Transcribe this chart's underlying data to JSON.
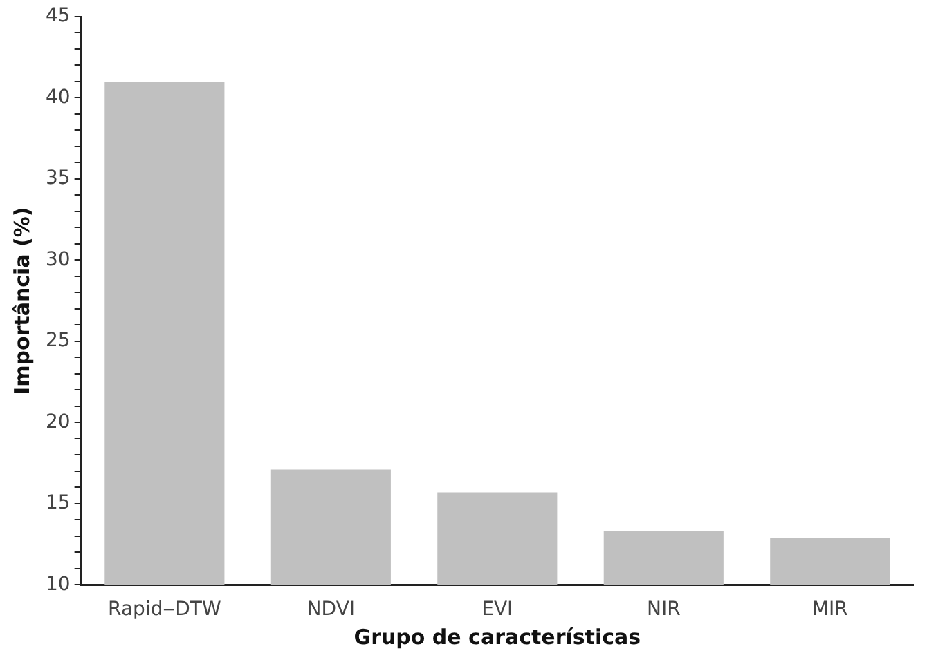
{
  "chart_data": {
    "type": "bar",
    "xlabel": "Grupo de características",
    "ylabel": "Importância (%)",
    "categories": [
      "Rapid‒DTW",
      "NDVI",
      "EVI",
      "NIR",
      "MIR"
    ],
    "values": [
      41,
      17.1,
      15.7,
      13.3,
      12.9
    ],
    "color": "#c0c0c0",
    "ylim": [
      10,
      45
    ],
    "yticks": [
      10,
      {
        "value": 11,
        "label": null
      },
      {
        "value": 12,
        "label": null
      },
      {
        "value": 13,
        "label": null
      },
      {
        "value": 14,
        "label": null
      },
      15,
      {
        "value": 16,
        "label": null
      },
      {
        "value": 17,
        "label": null
      },
      {
        "value": 18,
        "label": null
      },
      {
        "value": 19,
        "label": null
      },
      20,
      {
        "value": 21,
        "label": null
      },
      {
        "value": 22,
        "label": null
      },
      {
        "value": 23,
        "label": null
      },
      {
        "value": 24,
        "label": null
      },
      25,
      {
        "value": 26,
        "label": null
      },
      {
        "value": 27,
        "label": null
      },
      {
        "value": 28,
        "label": null
      },
      {
        "value": 29,
        "label": null
      },
      30,
      {
        "value": 31,
        "label": null
      },
      {
        "value": 32,
        "label": null
      },
      {
        "value": 33,
        "label": null
      },
      {
        "value": 34,
        "label": null
      },
      35,
      {
        "value": 36,
        "label": null
      },
      {
        "value": 37,
        "label": null
      },
      {
        "value": 38,
        "label": null
      },
      {
        "value": 39,
        "label": null
      },
      40,
      {
        "value": 41,
        "label": null
      },
      {
        "value": 42,
        "label": null
      },
      {
        "value": 43,
        "label": null
      },
      {
        "value": 44,
        "label": null
      },
      45
    ],
    "grid": false,
    "legend": false
  }
}
